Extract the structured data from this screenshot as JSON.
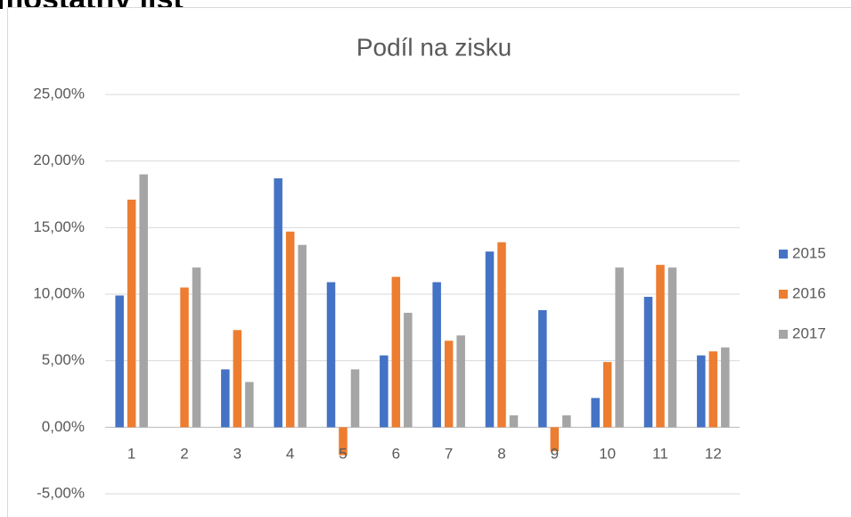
{
  "header": {
    "title": "mostatný list"
  },
  "chart_data": {
    "type": "bar",
    "title": "Podíl na zisku",
    "categories": [
      "1",
      "2",
      "3",
      "4",
      "5",
      "6",
      "7",
      "8",
      "9",
      "10",
      "11",
      "12"
    ],
    "series": [
      {
        "name": "2015",
        "color": "#4472c4",
        "values": [
          9.9,
          0,
          4.35,
          18.7,
          10.9,
          5.4,
          10.9,
          13.2,
          8.8,
          2.2,
          9.8,
          5.4
        ]
      },
      {
        "name": "2016",
        "color": "#ed7d31",
        "values": [
          17.1,
          10.5,
          7.3,
          14.7,
          -2.1,
          11.3,
          6.5,
          13.9,
          -1.8,
          4.9,
          12.2,
          5.7
        ]
      },
      {
        "name": "2017",
        "color": "#a5a5a5",
        "values": [
          19.0,
          12.0,
          3.4,
          13.7,
          4.35,
          8.6,
          6.9,
          0.9,
          0.9,
          12.0,
          12.0,
          6.0
        ]
      }
    ],
    "ylim": [
      -5,
      25
    ],
    "yticks": [
      {
        "value": -5,
        "label": "-5,00%"
      },
      {
        "value": 0,
        "label": "0,00%"
      },
      {
        "value": 5,
        "label": "5,00%"
      },
      {
        "value": 10,
        "label": "10,00%"
      },
      {
        "value": 15,
        "label": "15,00%"
      },
      {
        "value": 20,
        "label": "20,00%"
      },
      {
        "value": 25,
        "label": "25,00%"
      }
    ],
    "grid": true,
    "legend": "right"
  }
}
